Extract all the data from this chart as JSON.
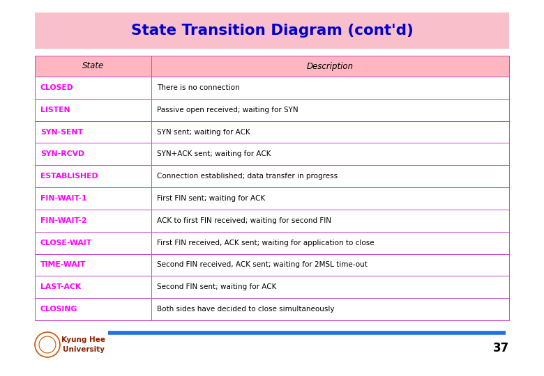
{
  "title": "State Transition Diagram (cont'd)",
  "title_bg": "#F9C0CB",
  "title_color": "#0000CC",
  "bg_color": "#FFFFFF",
  "table_header": [
    "State",
    "Description"
  ],
  "table_header_bg": "#FFB6C1",
  "table_header_color": "#000000",
  "table_border_color": "#CC44CC",
  "state_color": "#FF00FF",
  "desc_color": "#000000",
  "rows": [
    [
      "CLOSED",
      "There is no connection"
    ],
    [
      "LISTEN",
      "Passive open received; waiting for SYN"
    ],
    [
      "SYN-SENT",
      "SYN sent; waiting for ACK"
    ],
    [
      "SYN-RCVD",
      "SYN+ACK sent; waiting for ACK"
    ],
    [
      "ESTABLISHED",
      "Connection established; data transfer in progress"
    ],
    [
      "FIN-WAIT-1",
      "First FIN sent; waiting for ACK"
    ],
    [
      "FIN-WAIT-2",
      "ACK to first FIN received; waiting for second FIN"
    ],
    [
      "CLOSE-WAIT",
      "First FIN received, ACK sent; waiting for application to close"
    ],
    [
      "TIME-WAIT",
      "Second FIN received, ACK sent; waiting for 2MSL time-out"
    ],
    [
      "LAST-ACK",
      "Second FIN sent; waiting for ACK"
    ],
    [
      "CLOSING",
      "Both sides have decided to close simultaneously"
    ]
  ],
  "footer_line_color": "#1E6FE8",
  "footer_text": "37",
  "footer_label": "Kyung Hee\nUniversity",
  "footer_label_color": "#8B2000"
}
